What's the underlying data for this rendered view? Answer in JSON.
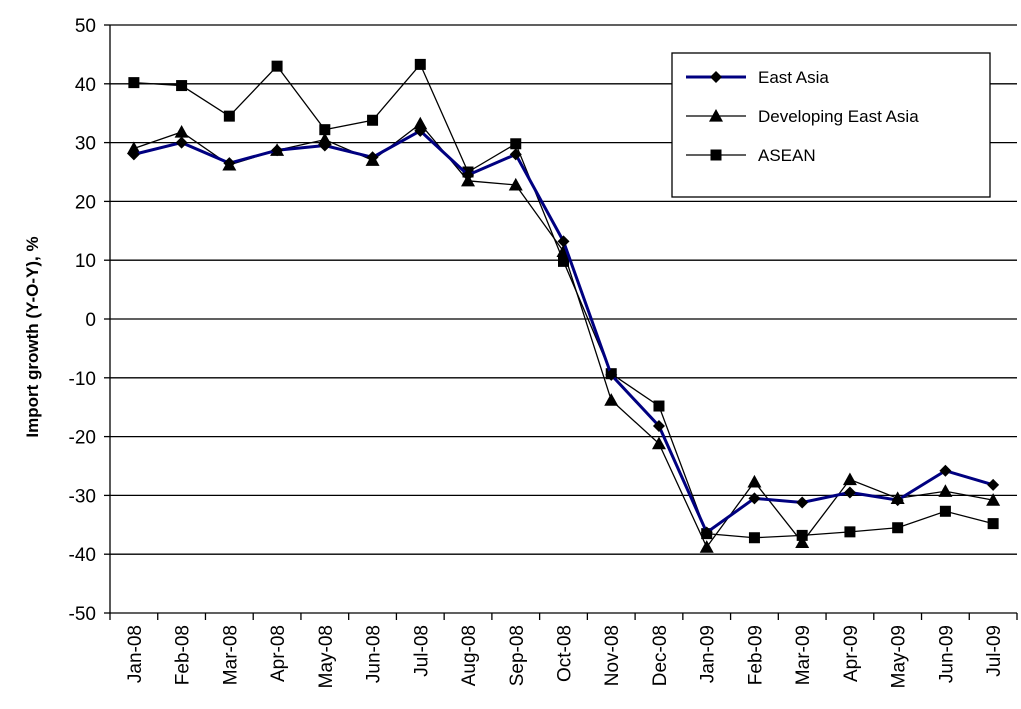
{
  "chart_data": {
    "type": "line",
    "title": "",
    "xlabel": "",
    "ylabel": "Import growth (Y-O-Y), %",
    "ylim": [
      -50,
      50
    ],
    "yticks": [
      -50,
      -40,
      -30,
      -20,
      -10,
      0,
      10,
      20,
      30,
      40,
      50
    ],
    "grid": "horizontal",
    "legend_position": "top-right",
    "categories": [
      "Jan-08",
      "Feb-08",
      "Mar-08",
      "Apr-08",
      "May-08",
      "Jun-08",
      "Jul-08",
      "Aug-08",
      "Sep-08",
      "Oct-08",
      "Nov-08",
      "Dec-08",
      "Jan-09",
      "Feb-09",
      "Mar-09",
      "Apr-09",
      "May-09",
      "Jun-09",
      "Jul-09"
    ],
    "series": [
      {
        "name": "East Asia",
        "marker": "diamond",
        "color": "#000080",
        "values": [
          28.0,
          30.0,
          26.5,
          28.7,
          29.5,
          27.5,
          32.0,
          24.5,
          28.0,
          13.2,
          -9.5,
          -18.2,
          -36.3,
          -30.5,
          -31.2,
          -29.5,
          -30.8,
          -25.8,
          -28.2
        ]
      },
      {
        "name": "Developing East Asia",
        "marker": "triangle",
        "color": "#000000",
        "values": [
          29.0,
          31.8,
          26.2,
          28.7,
          30.5,
          27.0,
          33.2,
          23.5,
          22.8,
          11.5,
          -13.8,
          -21.2,
          -38.8,
          -27.7,
          -38.0,
          -27.3,
          -30.5,
          -29.3,
          -30.8
        ]
      },
      {
        "name": "ASEAN",
        "marker": "square",
        "color": "#000000",
        "values": [
          40.2,
          39.7,
          34.5,
          43.0,
          32.2,
          33.8,
          43.3,
          25.0,
          29.8,
          9.8,
          -9.3,
          -14.8,
          -36.5,
          -37.2,
          -36.8,
          -36.2,
          -35.5,
          -32.7,
          -34.8
        ]
      }
    ]
  }
}
